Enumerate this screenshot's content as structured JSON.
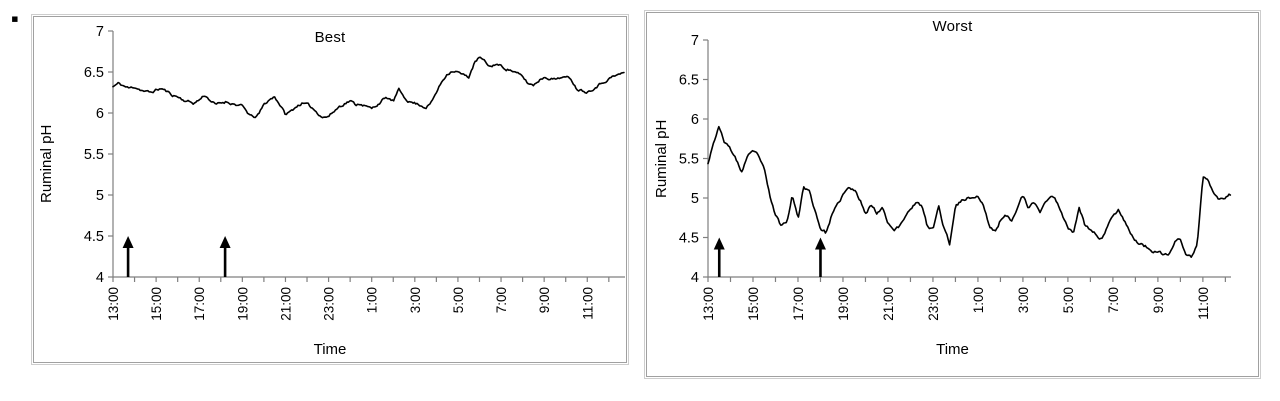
{
  "page": {
    "bullet_glyph": "▪"
  },
  "chart_data": [
    {
      "type": "line",
      "title": "Best",
      "xlabel": "Time",
      "ylabel": "Ruminal pH",
      "ylim": [
        4,
        7
      ],
      "y_tick_values": [
        4,
        4.5,
        5,
        5.5,
        6,
        6.5,
        7
      ],
      "y_tick_labels": [
        "4",
        "4.5",
        "5",
        "5.5",
        "6",
        "6.5",
        "7"
      ],
      "x_tick_labels": [
        "13:00",
        "15:00",
        "17:00",
        "19:00",
        "21:00",
        "23:00",
        "1:00",
        "3:00",
        "5:00",
        "7:00",
        "9:00",
        "11:00"
      ],
      "x_tick_hours": [
        0,
        2,
        4,
        6,
        8,
        10,
        12,
        14,
        16,
        18,
        20,
        22
      ],
      "x_minor_tick_every_h": 1,
      "x_start_label": "13:00",
      "sample_interval_h": 0.25,
      "values": [
        6.32,
        6.36,
        6.33,
        6.3,
        6.32,
        6.29,
        6.26,
        6.25,
        6.28,
        6.3,
        6.26,
        6.22,
        6.2,
        6.16,
        6.14,
        6.12,
        6.16,
        6.22,
        6.16,
        6.1,
        6.12,
        6.14,
        6.12,
        6.1,
        6.08,
        6.0,
        5.94,
        5.98,
        6.1,
        6.16,
        6.2,
        6.1,
        5.98,
        6.02,
        6.08,
        6.12,
        6.1,
        6.06,
        6.0,
        5.95,
        5.96,
        6.02,
        6.08,
        6.12,
        6.15,
        6.1,
        6.12,
        6.08,
        6.05,
        6.1,
        6.16,
        6.18,
        6.14,
        6.28,
        6.2,
        6.14,
        6.12,
        6.1,
        6.07,
        6.12,
        6.25,
        6.38,
        6.48,
        6.52,
        6.5,
        6.46,
        6.44,
        6.6,
        6.68,
        6.62,
        6.56,
        6.6,
        6.57,
        6.54,
        6.52,
        6.48,
        6.44,
        6.36,
        6.34,
        6.4,
        6.44,
        6.43,
        6.41,
        6.44,
        6.43,
        6.42,
        6.3,
        6.28,
        6.26,
        6.3,
        6.34,
        6.38,
        6.42,
        6.45,
        6.47,
        6.5
      ],
      "arrows_t_hours_after_start": [
        0.7,
        5.2
      ],
      "arrow_tip_ph": 4.5,
      "line_color": "#000000",
      "axis_color": "#7f7f7f",
      "noise_amplitude": 0.022,
      "noise_seed": 11,
      "grid": false,
      "legend": null
    },
    {
      "type": "line",
      "title": "Worst",
      "xlabel": "Time",
      "ylabel": "Ruminal pH",
      "ylim": [
        4,
        7
      ],
      "y_tick_values": [
        4,
        4.5,
        5,
        5.5,
        6,
        6.5,
        7
      ],
      "y_tick_labels": [
        "4",
        "4.5",
        "5",
        "5.5",
        "6",
        "6.5",
        "7"
      ],
      "x_tick_labels": [
        "13:00",
        "15:00",
        "17:00",
        "19:00",
        "21:00",
        "23:00",
        "1:00",
        "3:00",
        "5:00",
        "7:00",
        "9:00",
        "11:00"
      ],
      "x_tick_hours": [
        0,
        2,
        4,
        6,
        8,
        10,
        12,
        14,
        16,
        18,
        20,
        22
      ],
      "x_minor_tick_every_h": 1,
      "x_start_label": "13:00",
      "sample_interval_h": 0.25,
      "values": [
        5.45,
        5.72,
        5.9,
        5.7,
        5.62,
        5.48,
        5.33,
        5.53,
        5.57,
        5.54,
        5.35,
        5.02,
        4.78,
        4.65,
        4.7,
        5.06,
        4.73,
        5.15,
        5.08,
        4.85,
        4.62,
        4.56,
        4.78,
        4.9,
        5.04,
        5.12,
        5.1,
        4.98,
        4.82,
        4.92,
        4.81,
        4.89,
        4.7,
        4.6,
        4.63,
        4.76,
        4.88,
        4.94,
        4.9,
        4.63,
        4.6,
        4.89,
        4.62,
        4.41,
        4.92,
        4.96,
        5.0,
        5.01,
        5.02,
        4.9,
        4.65,
        4.57,
        4.72,
        4.77,
        4.72,
        4.9,
        5.03,
        4.85,
        4.95,
        4.82,
        4.96,
        5.02,
        4.95,
        4.8,
        4.62,
        4.58,
        4.9,
        4.66,
        4.6,
        4.54,
        4.48,
        4.62,
        4.79,
        4.86,
        4.73,
        4.58,
        4.46,
        4.41,
        4.38,
        4.33,
        4.3,
        4.28,
        4.28,
        4.45,
        4.48,
        4.28,
        4.25,
        4.4,
        5.27,
        5.2,
        5.08,
        4.98,
        5.0,
        5.05
      ],
      "arrows_t_hours_after_start": [
        0.5,
        5.0
      ],
      "arrow_tip_ph": 4.5,
      "line_color": "#000000",
      "axis_color": "#7f7f7f",
      "noise_amplitude": 0.028,
      "noise_seed": 23,
      "grid": false,
      "legend": null
    }
  ]
}
